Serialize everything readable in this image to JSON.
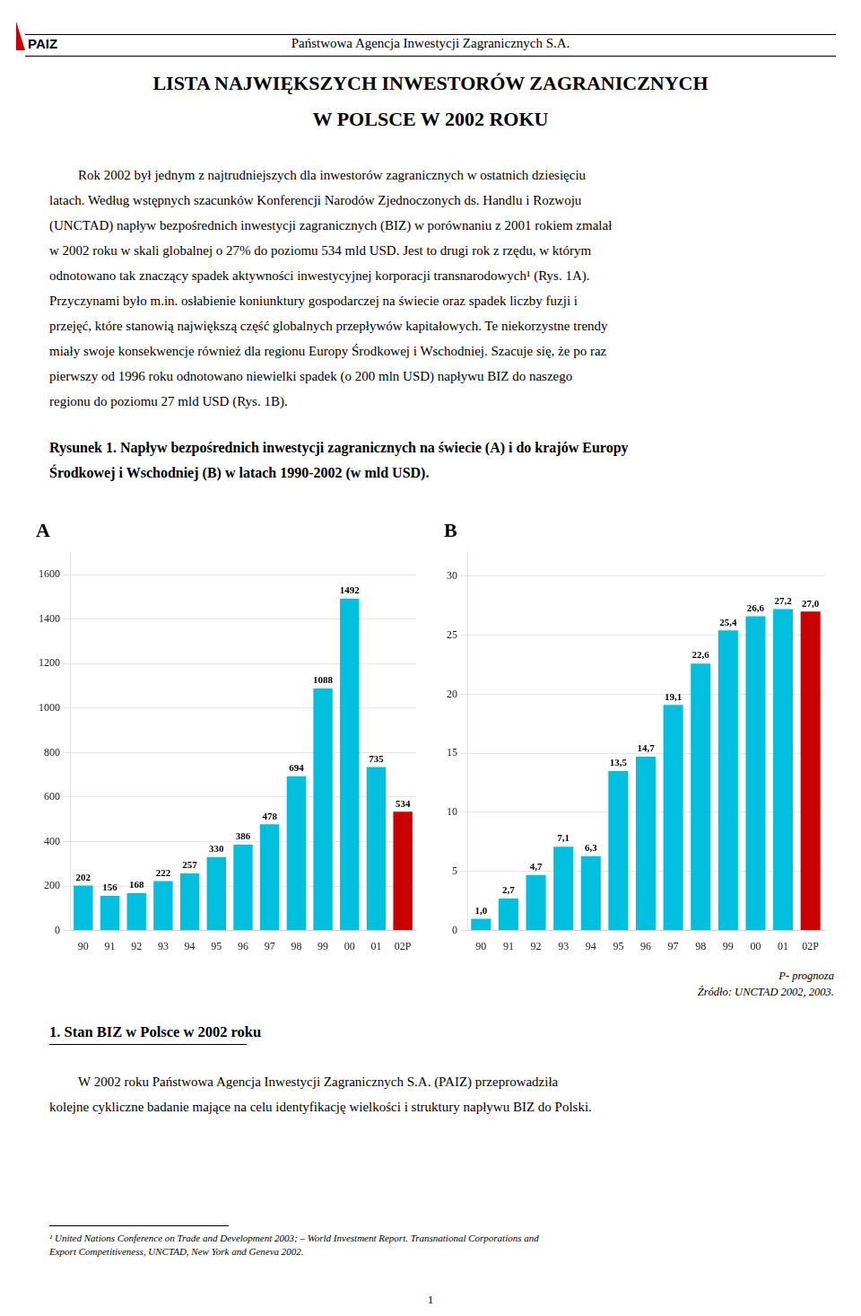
{
  "header_logo": "PAIZ",
  "header_title": "Państwowa Agencja Inwestycji Zagranicznych S.A.",
  "main_title": [
    "LISTA NAJWIĘKSZYCH INWESTORÓW ZAGRANICZNYCH",
    "W POLSCE W 2002 ROKU"
  ],
  "paragraph_1": [
    "Rok 2002 był jednym z najtrudniejszych dla inwestorów zagranicznych w ostatnich dziesięciu",
    "latach. Według wstępnych szacunków Konferencji Narodów Zjednoczonych ds. Handlu i Rozwoju",
    "(UNCTAD) napływ bezpośrednich inwestycji zagranicznych (BIZ) w porównaniu z 2001 rokiem zmalał",
    "w 2002 roku w skali globalnej o 27% do poziomu 534 mld USD. Jest to drugi rok z rzędu, w którym",
    "odnotowano tak znaczący spadek aktywności inwestycyjnej korporacji transnarodowych¹ (Rys. 1A).",
    "Przyczynami było m.in. osłabienie koniunktury gospodarczej na świecie oraz spadek liczby fuzji i",
    "przejęć, które stanowią największą część globalnych przepływów kapitałowych. Te niekorzystne trendy",
    "miały swoje konsekwencje również dla regionu Europy Środkowej i Wschodniej. Szacuje się, że po raz",
    "pierwszy od 1996 roku odnotowano niewielki spadek (o 200 mln USD) napływu BIZ do naszego",
    "regionu do poziomu 27 mld USD (Rys. 1B)."
  ],
  "figure_caption": [
    "Rysunek 1. Napływ bezpośrednich inwestycji zagranicznych na świecie (A) i do krajów Europy",
    "Środkowej i Wschodniej (B) w latach 1990-2002 (w mld USD)."
  ],
  "chart_data": [
    {
      "type": "bar",
      "title": "A",
      "categories": [
        "90",
        "91",
        "92",
        "93",
        "94",
        "95",
        "96",
        "97",
        "98",
        "99",
        "00",
        "01",
        "02P"
      ],
      "values": [
        202,
        156,
        168,
        222,
        257,
        330,
        386,
        478,
        694,
        1088,
        1492,
        735,
        534
      ],
      "colors": [
        "#00BFDF",
        "#00BFDF",
        "#00BFDF",
        "#00BFDF",
        "#00BFDF",
        "#00BFDF",
        "#00BFDF",
        "#00BFDF",
        "#00BFDF",
        "#00BFDF",
        "#00BFDF",
        "#00BFDF",
        "#CC0000"
      ],
      "ylim": [
        0,
        1700
      ],
      "yticks": [
        0,
        200,
        400,
        600,
        800,
        1000,
        1200,
        1400,
        1600
      ],
      "grid": true,
      "data_labels": true
    },
    {
      "type": "bar",
      "title": "B",
      "categories": [
        "90",
        "91",
        "92",
        "93",
        "94",
        "95",
        "96",
        "97",
        "98",
        "99",
        "00",
        "01",
        "02P"
      ],
      "values": [
        1.0,
        2.7,
        4.7,
        7.1,
        6.3,
        13.5,
        14.7,
        19.1,
        22.6,
        25.4,
        26.6,
        27.2,
        27.0
      ],
      "value_labels": [
        "1,0",
        "2,7",
        "4,7",
        "7,1",
        "6,3",
        "13,5",
        "14,7",
        "19,1",
        "22,6",
        "25,4",
        "26,6",
        "27,2",
        "27,0"
      ],
      "colors": [
        "#00BFDF",
        "#00BFDF",
        "#00BFDF",
        "#00BFDF",
        "#00BFDF",
        "#00BFDF",
        "#00BFDF",
        "#00BFDF",
        "#00BFDF",
        "#00BFDF",
        "#00BFDF",
        "#00BFDF",
        "#CC0000"
      ],
      "ylim": [
        0,
        32
      ],
      "yticks": [
        0,
        5,
        10,
        15,
        20,
        25,
        30
      ],
      "grid": true,
      "data_labels": true
    }
  ],
  "notes": [
    "P- prognoza",
    "Źródło: UNCTAD 2002, 2003."
  ],
  "section_title": "1. Stan BIZ w Polsce w 2002 roku",
  "paragraph_2": [
    "W 2002 roku Państwowa Agencja Inwestycji Zagranicznych S.A. (PAIZ) przeprowadziła",
    "kolejne cykliczne badanie mające na celu identyfikację wielkości i struktury napływu BIZ do Polski."
  ],
  "footnote": [
    "¹ United Nations Conference on Trade and Development 2003; – World Investment Report. Transnational Corporations and",
    "Export Competitiveness, UNCTAD, New York and Geneva 2002."
  ],
  "page_number": "1"
}
